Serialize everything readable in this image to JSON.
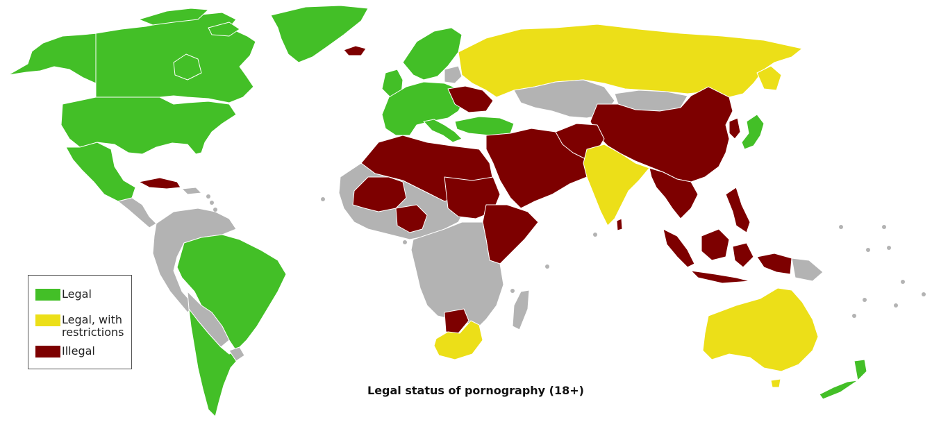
{
  "title": "Legal status of pornography (18+)",
  "colors": {
    "legal": "#43bf27",
    "restricted": "#ecdf18",
    "illegal": "#7d0000",
    "no_data": "#b3b3b3",
    "border": "#ffffff"
  },
  "legend": {
    "items": [
      {
        "label": "Legal",
        "color": "#43bf27"
      },
      {
        "label": "Legal, with\nrestrictions",
        "color": "#ecdf18"
      },
      {
        "label": "Illegal",
        "color": "#7d0000"
      }
    ]
  }
}
